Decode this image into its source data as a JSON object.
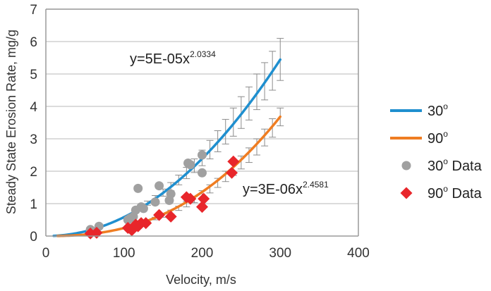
{
  "chart_data": {
    "type": "scatter",
    "xlabel": "Velocity, m/s",
    "ylabel": "Steady State Erosion Rate, mg/g",
    "xlim": [
      0,
      400
    ],
    "ylim": [
      0,
      7
    ],
    "xticks": [
      "0",
      "100",
      "200",
      "300",
      "400"
    ],
    "yticks": [
      "0",
      "1",
      "2",
      "3",
      "4",
      "5",
      "6",
      "7"
    ],
    "grid": "horizontal",
    "legend_position": "right",
    "colors": {
      "fit30": "#1f8fcf",
      "fit90": "#ef7d22",
      "data30": "#a0a0a0",
      "data90": "#e8262b",
      "errorbar": "#8c8c8c",
      "grid": "#c8c8c8",
      "axis": "#9a9a9a"
    },
    "series": [
      {
        "name": "30o",
        "kind": "fit-line",
        "equation": {
          "base": "y=5E-05x",
          "exponent": "2.0334"
        },
        "coef": 5e-05,
        "power": 2.0334,
        "x_range": [
          10,
          300
        ],
        "error_bars": {
          "x": [
            120,
            130,
            140,
            150,
            160,
            170,
            180,
            190,
            200,
            210,
            220,
            230,
            240,
            250,
            260,
            270,
            280,
            290,
            300
          ],
          "low": [
            0.82,
            0.95,
            1.07,
            1.23,
            1.4,
            1.58,
            1.77,
            1.96,
            2.17,
            2.38,
            2.6,
            2.84,
            3.08,
            3.32,
            3.58,
            3.9,
            4.2,
            4.5,
            4.8
          ],
          "high": [
            0.92,
            1.08,
            1.25,
            1.45,
            1.65,
            1.88,
            2.12,
            2.38,
            2.65,
            2.95,
            3.25,
            3.6,
            3.95,
            4.3,
            4.6,
            5.0,
            5.35,
            5.7,
            6.1
          ]
        }
      },
      {
        "name": "90o",
        "kind": "fit-line",
        "equation": {
          "base": "y=3E-06x",
          "exponent": "2.4581"
        },
        "coef": 3e-06,
        "power": 2.4581,
        "x_range": [
          15,
          300
        ],
        "error_bars": {
          "x": [
            130,
            140,
            150,
            160,
            170,
            180,
            190,
            200,
            210,
            220,
            230,
            240,
            250,
            260,
            270,
            280,
            290,
            300
          ],
          "low": [
            0.44,
            0.5,
            0.58,
            0.68,
            0.79,
            0.9,
            1.03,
            1.17,
            1.33,
            1.5,
            1.68,
            1.87,
            2.07,
            2.27,
            2.5,
            2.78,
            3.05,
            3.4
          ],
          "high": [
            0.5,
            0.58,
            0.68,
            0.8,
            0.92,
            1.07,
            1.22,
            1.4,
            1.58,
            1.78,
            2.0,
            2.24,
            2.47,
            2.72,
            3.0,
            3.3,
            3.62,
            3.95
          ]
        }
      },
      {
        "name": "30o Data",
        "kind": "points",
        "x": [
          57,
          68,
          105,
          108,
          112,
          115,
          118,
          122,
          125,
          140,
          145,
          158,
          160,
          182,
          185,
          200,
          200
        ],
        "y": [
          0.2,
          0.3,
          0.5,
          0.55,
          0.6,
          0.8,
          1.47,
          0.9,
          0.85,
          1.05,
          1.55,
          1.1,
          1.3,
          2.25,
          2.2,
          2.5,
          1.95
        ]
      },
      {
        "name": "90o Data",
        "kind": "points",
        "x": [
          57,
          65,
          105,
          110,
          115,
          118,
          122,
          128,
          145,
          160,
          180,
          185,
          200,
          202,
          238,
          240
        ],
        "y": [
          0.08,
          0.1,
          0.25,
          0.18,
          0.35,
          0.3,
          0.4,
          0.4,
          0.65,
          0.6,
          1.2,
          1.15,
          0.9,
          1.15,
          1.95,
          2.3
        ]
      }
    ],
    "legend": [
      {
        "base": "30",
        "sup": "o",
        "suffix": ""
      },
      {
        "base": "90",
        "sup": "o",
        "suffix": ""
      },
      {
        "base": "30",
        "sup": "o",
        "suffix": " Data"
      },
      {
        "base": "90",
        "sup": "o",
        "suffix": " Data"
      }
    ]
  }
}
